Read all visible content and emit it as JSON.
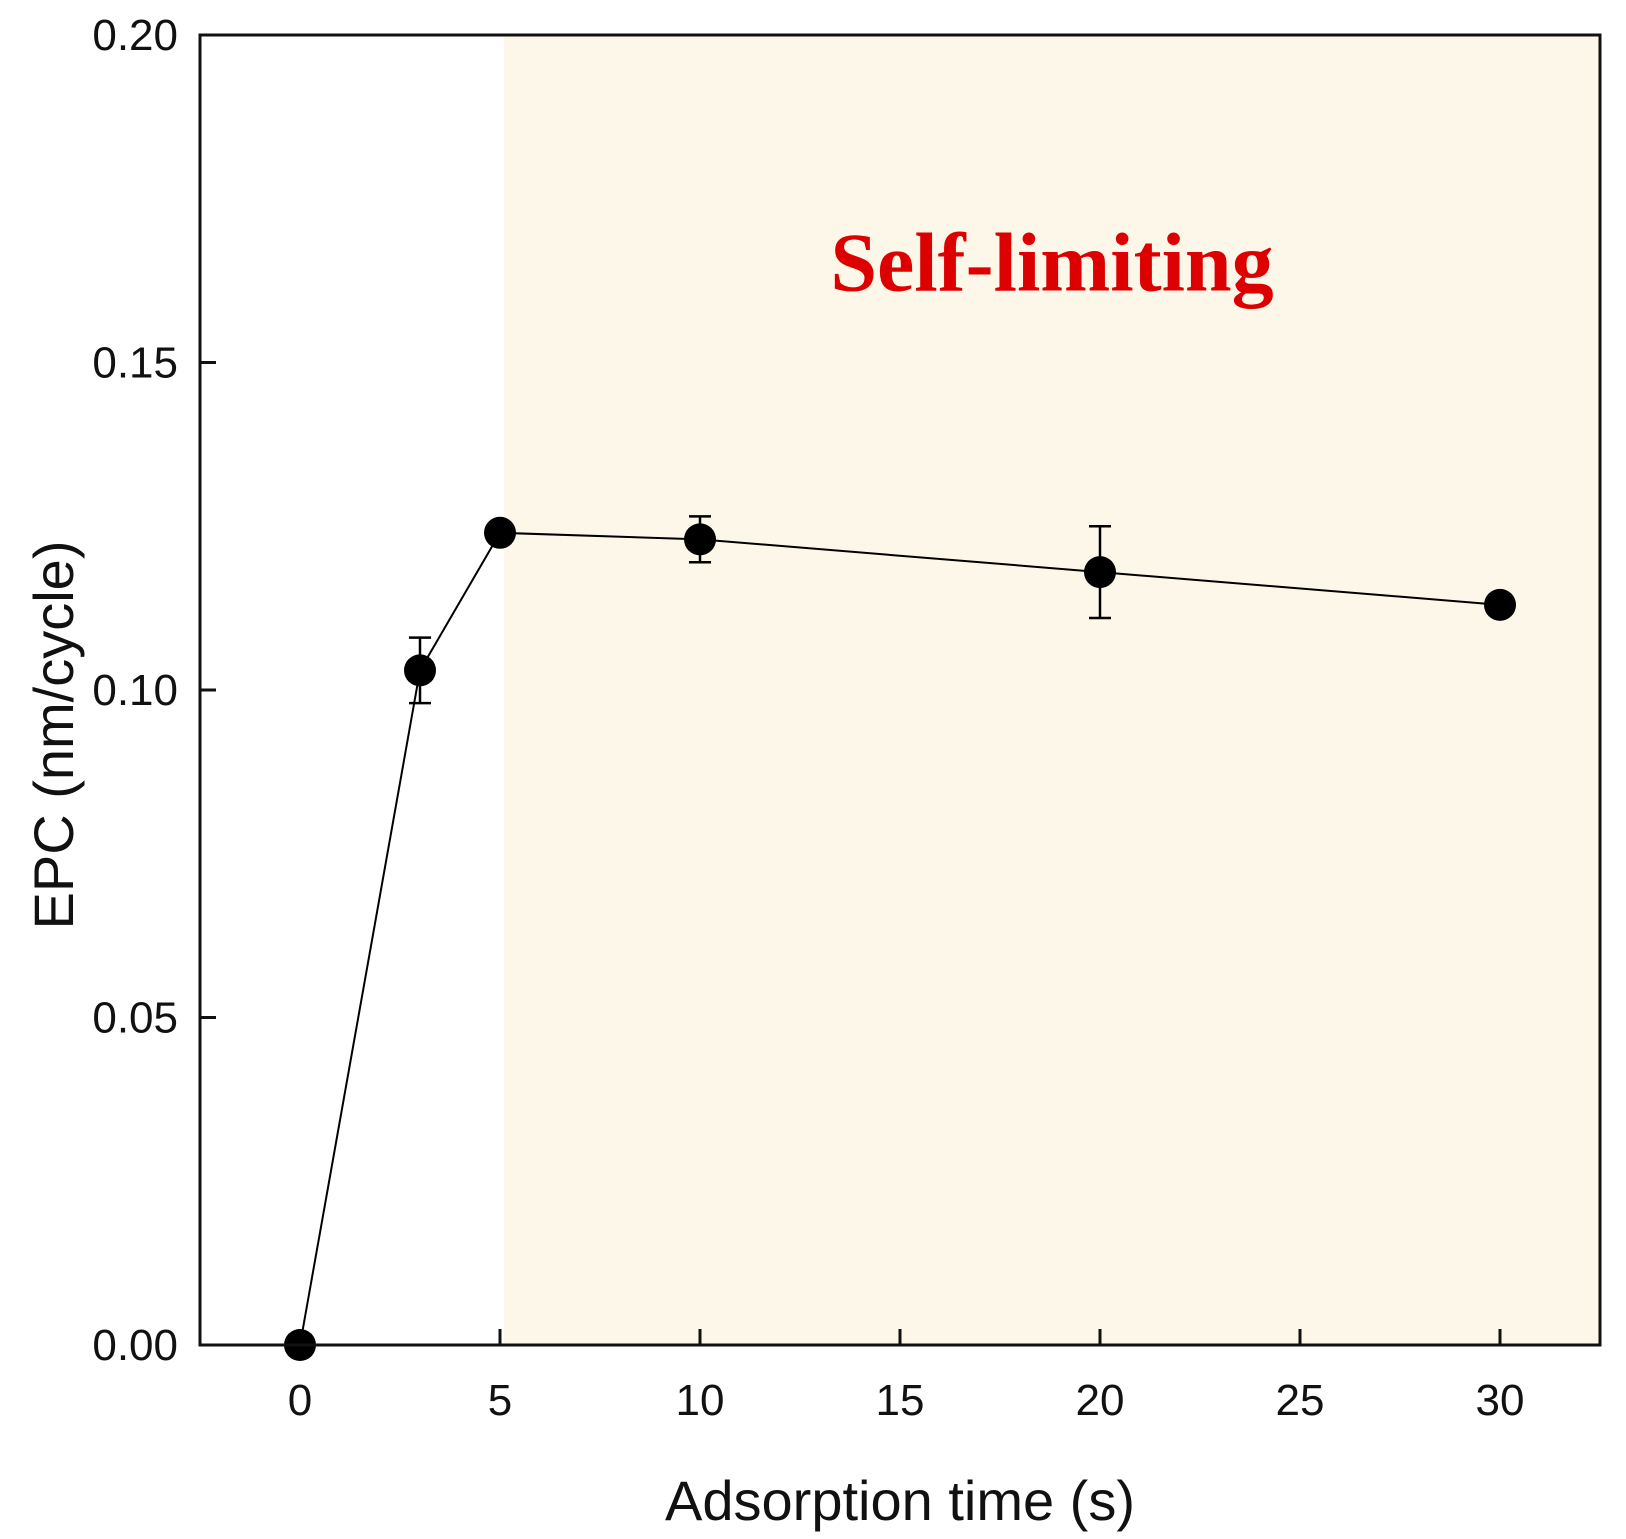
{
  "chart_data": {
    "type": "line",
    "xlabel": "Adsorption time (s)",
    "ylabel": "EPC (nm/cycle)",
    "xlim": [
      -2.5,
      32.5
    ],
    "ylim": [
      0,
      0.2
    ],
    "xticks": [
      0,
      5,
      10,
      15,
      20,
      25,
      30
    ],
    "xtick_labels": [
      "0",
      "5",
      "10",
      "15",
      "20",
      "25",
      "30"
    ],
    "yticks": [
      0,
      0.05,
      0.1,
      0.15,
      0.2
    ],
    "ytick_labels": [
      "0.00",
      "0.05",
      "0.10",
      "0.15",
      "0.20"
    ],
    "grid": false,
    "series": [
      {
        "x": [
          0,
          3,
          5,
          10,
          20,
          30
        ],
        "y": [
          0.0,
          0.103,
          0.124,
          0.123,
          0.118,
          0.113
        ],
        "error": [
          0,
          0.005,
          0,
          0.0035,
          0.007,
          0
        ],
        "color": "#000000",
        "marker": "filled-circle"
      }
    ],
    "shaded_region": {
      "x_start": 5.1,
      "x_end": 32.5,
      "color": "#fdf7ea"
    },
    "annotations": [
      {
        "text": "Self-limiting",
        "x": 18.8,
        "y": 0.161,
        "color": "#dd0000"
      }
    ]
  }
}
